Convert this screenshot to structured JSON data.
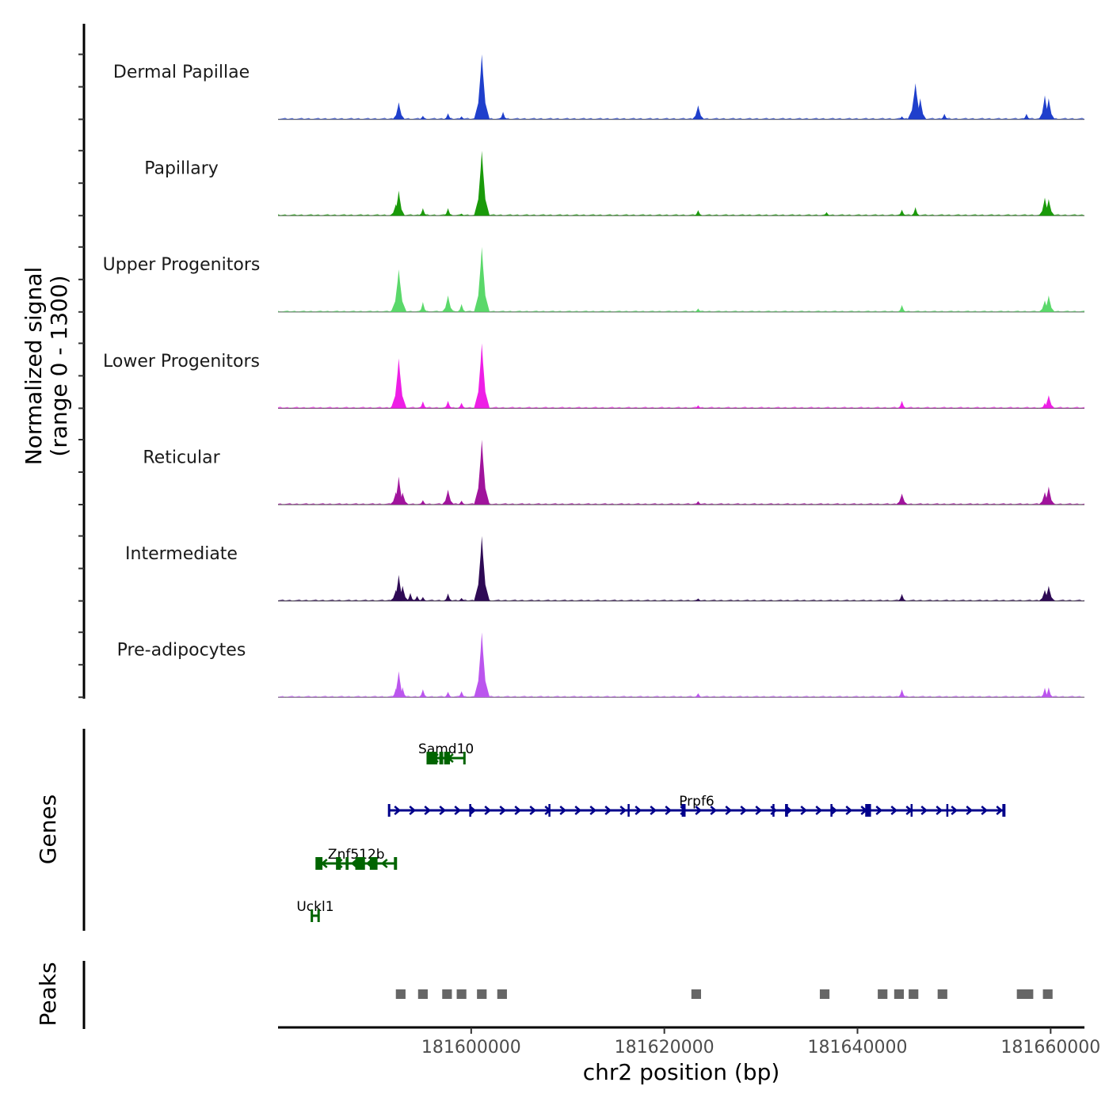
{
  "chart_data": {
    "type": "area",
    "title": "",
    "chromosome": "chr2",
    "xlabel": "chr2 position (bp)",
    "ylabel_line1": "Normalized signal",
    "ylabel_line2": "(range 0 - 1300)",
    "signal_range": [
      0,
      1300
    ],
    "xlim": [
      181580000,
      181663500
    ],
    "x_ticks": [
      181600000,
      181620000,
      181640000,
      181660000
    ],
    "x_tick_labels": [
      "181600000",
      "181620000",
      "181640000",
      "181660000"
    ],
    "tracks": [
      {
        "name": "Dermal Papillae",
        "color": "#1f3fcc",
        "peaks": [
          [
            181592500,
            340
          ],
          [
            181595000,
            70
          ],
          [
            181597600,
            120
          ],
          [
            181599000,
            60
          ],
          [
            181601100,
            1300
          ],
          [
            181603300,
            150
          ],
          [
            181623500,
            280
          ],
          [
            181644600,
            60
          ],
          [
            181646000,
            720
          ],
          [
            181646500,
            420
          ],
          [
            181649000,
            110
          ],
          [
            181657500,
            110
          ],
          [
            181659400,
            480
          ],
          [
            181659800,
            420
          ]
        ]
      },
      {
        "name": "Papillary",
        "color": "#1a9a0a",
        "peaks": [
          [
            181592200,
            230
          ],
          [
            181592500,
            500
          ],
          [
            181595000,
            150
          ],
          [
            181597600,
            150
          ],
          [
            181599000,
            40
          ],
          [
            181601100,
            1300
          ],
          [
            181623500,
            110
          ],
          [
            181636800,
            70
          ],
          [
            181644600,
            120
          ],
          [
            181646000,
            170
          ],
          [
            181659400,
            360
          ],
          [
            181659800,
            330
          ]
        ]
      },
      {
        "name": "Upper Progenitors",
        "color": "#5ad86a",
        "peaks": [
          [
            181592200,
            250
          ],
          [
            181592500,
            850
          ],
          [
            181595000,
            200
          ],
          [
            181597600,
            330
          ],
          [
            181599000,
            160
          ],
          [
            181601100,
            1300
          ],
          [
            181623500,
            70
          ],
          [
            181644600,
            140
          ],
          [
            181659400,
            230
          ],
          [
            181659800,
            330
          ]
        ]
      },
      {
        "name": "Lower Progenitors",
        "color": "#ee1ee6",
        "peaks": [
          [
            181592200,
            280
          ],
          [
            181592500,
            1000
          ],
          [
            181595000,
            140
          ],
          [
            181597600,
            150
          ],
          [
            181599000,
            110
          ],
          [
            181601100,
            1300
          ],
          [
            181623500,
            60
          ],
          [
            181644600,
            150
          ],
          [
            181659400,
            110
          ],
          [
            181659800,
            260
          ]
        ]
      },
      {
        "name": "Reticular",
        "color": "#a0149c",
        "peaks": [
          [
            181592200,
            250
          ],
          [
            181592500,
            560
          ],
          [
            181592900,
            240
          ],
          [
            181595000,
            90
          ],
          [
            181597600,
            300
          ],
          [
            181599000,
            80
          ],
          [
            181601100,
            1300
          ],
          [
            181623500,
            70
          ],
          [
            181644600,
            220
          ],
          [
            181659400,
            250
          ],
          [
            181659800,
            360
          ]
        ]
      },
      {
        "name": "Intermediate",
        "color": "#2e0a55",
        "peaks": [
          [
            181592200,
            220
          ],
          [
            181592500,
            520
          ],
          [
            181592900,
            300
          ],
          [
            181593700,
            160
          ],
          [
            181594400,
            100
          ],
          [
            181595000,
            80
          ],
          [
            181597600,
            150
          ],
          [
            181599000,
            60
          ],
          [
            181601100,
            1300
          ],
          [
            181623500,
            50
          ],
          [
            181644600,
            140
          ],
          [
            181659400,
            220
          ],
          [
            181659800,
            300
          ]
        ]
      },
      {
        "name": "Pre-adipocytes",
        "color": "#bb55ee",
        "peaks": [
          [
            181592200,
            180
          ],
          [
            181592500,
            520
          ],
          [
            181592900,
            200
          ],
          [
            181595000,
            160
          ],
          [
            181597600,
            110
          ],
          [
            181599000,
            120
          ],
          [
            181601100,
            1300
          ],
          [
            181623500,
            80
          ],
          [
            181644600,
            160
          ],
          [
            181659400,
            190
          ],
          [
            181659800,
            200
          ]
        ]
      }
    ],
    "genes_title": "Genes",
    "genes": [
      {
        "name": "Samd10",
        "strand": "-",
        "start": 181595500,
        "end": 181599300,
        "color": "#006400",
        "row": 0,
        "exons": [
          [
            181595500,
            181596500
          ],
          [
            181596700,
            181597100
          ],
          [
            181597200,
            181597800
          ]
        ]
      },
      {
        "name": "Prpf6",
        "strand": "+",
        "start": 181591500,
        "end": 181655200,
        "color": "#00008b",
        "row": 1,
        "exons": [
          [
            181599800,
            181599900
          ],
          [
            181608000,
            181608100
          ],
          [
            181616200,
            181616300
          ],
          [
            181621800,
            181622200
          ],
          [
            181631200,
            181631300
          ],
          [
            181632500,
            181632800
          ],
          [
            181637200,
            181637300
          ],
          [
            181640800,
            181641400
          ],
          [
            181645500,
            181645600
          ],
          [
            181649200,
            181649400
          ],
          [
            181655000,
            181655200
          ]
        ]
      },
      {
        "name": "Znf512b",
        "strand": "-",
        "start": 181584000,
        "end": 181592200,
        "color": "#006400",
        "row": 2,
        "exons": [
          [
            181584000,
            181584600
          ],
          [
            181586000,
            181586500
          ],
          [
            181587000,
            181587300
          ],
          [
            181588000,
            181589000
          ],
          [
            181589500,
            181590300
          ],
          [
            181592000,
            181592200
          ]
        ]
      },
      {
        "name": "Uckl1",
        "strand": "-",
        "start": 181583500,
        "end": 181584200,
        "color": "#006400",
        "row": 3,
        "exons": []
      }
    ],
    "peaks_title": "Peaks",
    "peak_color": "#666666",
    "peak_regions": [
      [
        181592200,
        181593200
      ],
      [
        181594500,
        181595500
      ],
      [
        181597000,
        181598000
      ],
      [
        181598500,
        181599500
      ],
      [
        181600600,
        181601600
      ],
      [
        181602700,
        181603700
      ],
      [
        181622800,
        181623800
      ],
      [
        181636100,
        181637100
      ],
      [
        181642100,
        181643100
      ],
      [
        181643800,
        181644800
      ],
      [
        181645300,
        181646300
      ],
      [
        181648300,
        181649300
      ],
      [
        181656500,
        181657500
      ],
      [
        181657200,
        181658200
      ],
      [
        181659200,
        181660200
      ]
    ]
  }
}
